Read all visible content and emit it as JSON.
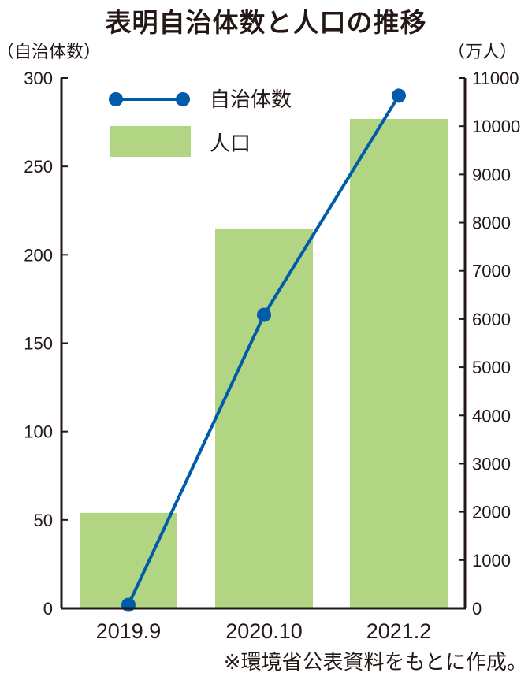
{
  "chart_data": {
    "type": "bar+line",
    "title": "表明自治体数と人口の推移",
    "categories": [
      "2019.9",
      "2020.10",
      "2021.2"
    ],
    "left_axis": {
      "label": "（自治体数）",
      "ylim": [
        0,
        300
      ],
      "ticks": [
        "0",
        "50",
        "100",
        "150",
        "200",
        "250",
        "300"
      ]
    },
    "right_axis": {
      "label": "（万人）",
      "ylim": [
        0,
        11000
      ],
      "ticks": [
        "0",
        "1000",
        "2000",
        "3000",
        "4000",
        "5000",
        "6000",
        "7000",
        "8000",
        "9000",
        "10000",
        "11000"
      ]
    },
    "series": [
      {
        "name": "自治体数",
        "kind": "line",
        "axis": "left",
        "values": [
          2,
          166,
          290
        ],
        "color": "#005bab"
      },
      {
        "name": "人口",
        "kind": "bar",
        "axis": "right",
        "values": [
          1980,
          7880,
          10150
        ],
        "color": "#b1d582"
      }
    ],
    "legend_position": "top-left",
    "grid": false,
    "footnote": "※環境省公表資料をもとに作成。"
  }
}
